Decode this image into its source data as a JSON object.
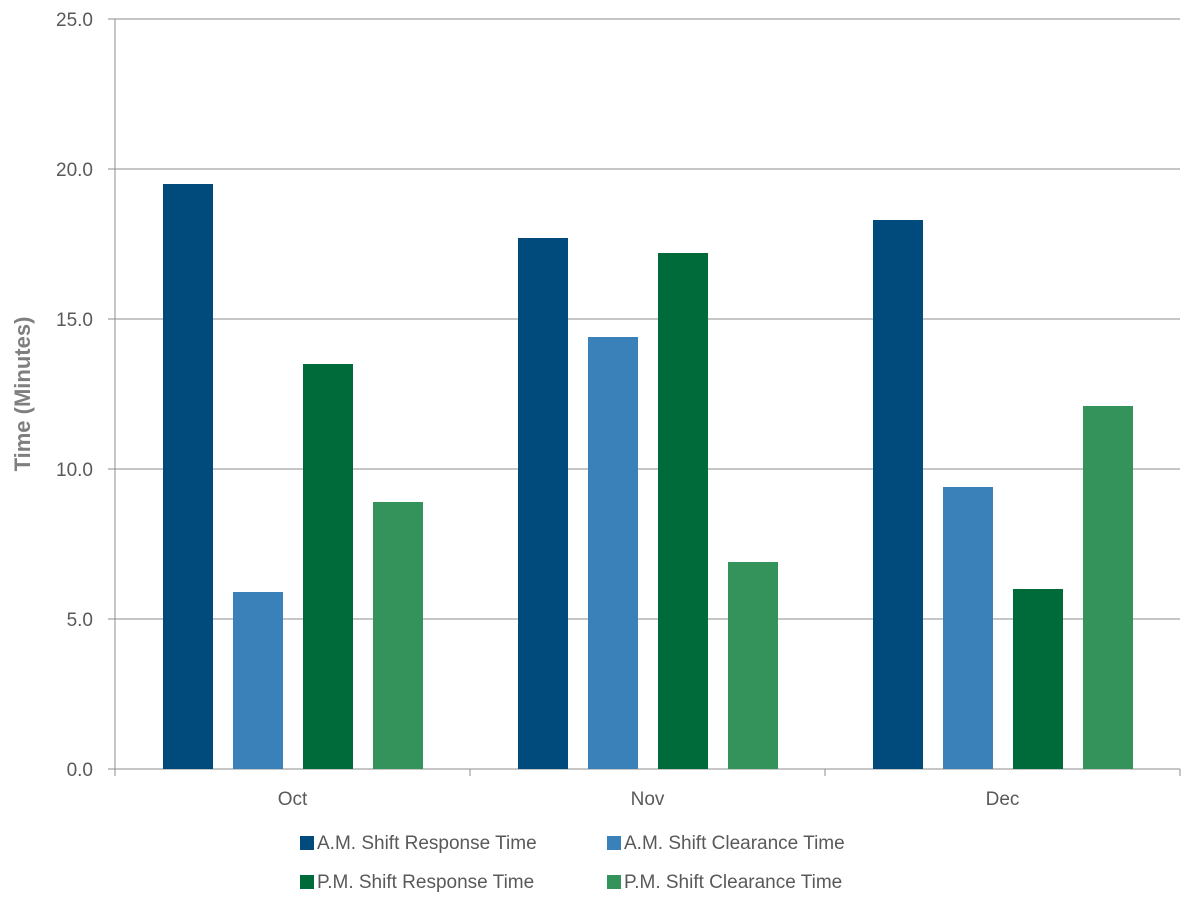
{
  "chart_data": {
    "type": "bar",
    "title": "",
    "xlabel": "",
    "ylabel": "Time (Minutes)",
    "categories": [
      "Oct",
      "Nov",
      "Dec"
    ],
    "ylim": [
      0,
      25
    ],
    "yticks": [
      0,
      5,
      10,
      15,
      20,
      25
    ],
    "ytick_labels": [
      "0.0",
      "5.0",
      "10.0",
      "15.0",
      "20.0",
      "25.0"
    ],
    "grid": true,
    "legend_position": "bottom",
    "series": [
      {
        "name": "A.M. Shift Response Time",
        "color": "#004a7c",
        "values": [
          19.5,
          17.7,
          18.3
        ]
      },
      {
        "name": "A.M. Shift Clearance Time",
        "color": "#3a81ba",
        "values": [
          5.9,
          14.4,
          9.4
        ]
      },
      {
        "name": "P.M. Shift Response Time",
        "color": "#006b3a",
        "values": [
          13.5,
          17.2,
          6.0
        ]
      },
      {
        "name": "P.M. Shift Clearance Time",
        "color": "#33935a",
        "values": [
          8.9,
          6.9,
          12.1
        ]
      }
    ]
  }
}
